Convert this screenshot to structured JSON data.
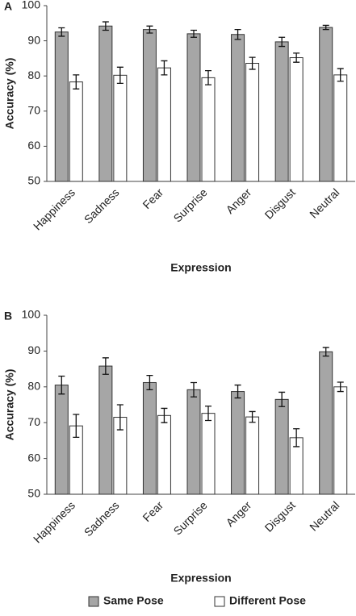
{
  "chart_data": [
    {
      "type": "bar",
      "panel": "A",
      "xlabel": "Expression",
      "ylabel": "Accuracy (%)",
      "categories": [
        "Happiness",
        "Sadness",
        "Fear",
        "Surprise",
        "Anger",
        "Disgust",
        "Neutral"
      ],
      "ylim": [
        50,
        100
      ],
      "yticks": [
        50,
        60,
        70,
        80,
        90,
        100
      ],
      "grid": false,
      "series": [
        {
          "color": "#a6a6a6",
          "values": [
            92.5,
            94.2,
            93.2,
            92.0,
            91.8,
            89.7,
            93.8
          ],
          "errors": [
            1.2,
            1.2,
            1.0,
            1.0,
            1.4,
            1.3,
            0.6
          ]
        },
        {
          "color": "#ffffff",
          "values": [
            78.3,
            80.2,
            82.3,
            79.5,
            83.6,
            85.2,
            80.3
          ],
          "errors": [
            2.0,
            2.3,
            2.0,
            2.0,
            1.7,
            1.3,
            1.8
          ]
        }
      ]
    },
    {
      "type": "bar",
      "panel": "B",
      "xlabel": "Expression",
      "ylabel": "Accuracy (%)",
      "categories": [
        "Happiness",
        "Sadness",
        "Fear",
        "Surprise",
        "Anger",
        "Disgust",
        "Neutral"
      ],
      "ylim": [
        50,
        100
      ],
      "yticks": [
        50,
        60,
        70,
        80,
        90,
        100
      ],
      "grid": false,
      "legend": "bottom",
      "series": [
        {
          "name": "Same Pose",
          "color": "#a6a6a6",
          "values": [
            80.5,
            85.8,
            81.2,
            79.2,
            78.7,
            76.5,
            89.8
          ],
          "errors": [
            2.5,
            2.3,
            2.0,
            2.0,
            1.8,
            2.0,
            1.2
          ]
        },
        {
          "name": "Different Pose",
          "color": "#ffffff",
          "values": [
            69.1,
            71.5,
            72.0,
            72.6,
            71.6,
            65.8,
            80.0
          ],
          "errors": [
            3.2,
            3.5,
            2.0,
            2.0,
            1.5,
            2.5,
            1.3
          ]
        }
      ]
    }
  ]
}
